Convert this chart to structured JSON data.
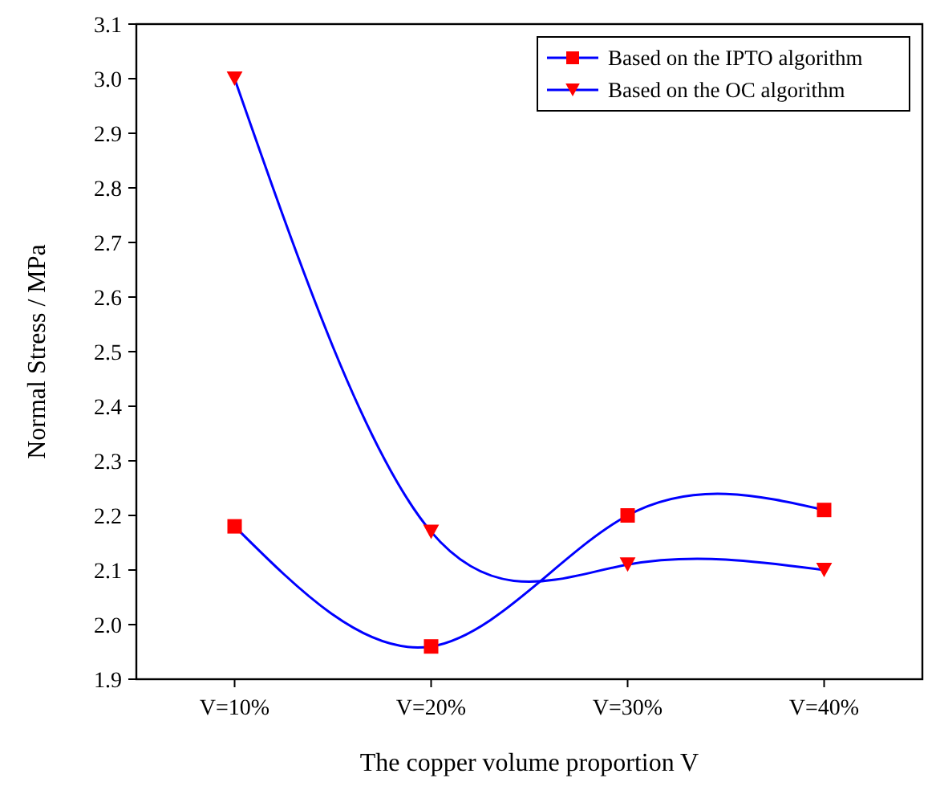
{
  "chart_data": {
    "type": "line",
    "xlabel": "The copper volume proportion V",
    "ylabel": "Normal Stress / MPa",
    "categories": [
      "V=10%",
      "V=20%",
      "V=30%",
      "V=40%"
    ],
    "series": [
      {
        "name": "Based on the IPTO algorithm",
        "color": "#0000ff",
        "marker": "square",
        "values": [
          2.18,
          1.96,
          2.2,
          2.21
        ]
      },
      {
        "name": "Based on the OC algorithm",
        "color": "#0000ff",
        "marker": "triangle-down",
        "values": [
          3.0,
          2.17,
          2.11,
          2.1
        ]
      }
    ],
    "ylim": [
      1.9,
      3.1
    ],
    "yticks": [
      1.9,
      {
        "value": 2.0,
        "label": "2.0"
      },
      2.1,
      2.2,
      2.3,
      2.4,
      2.5,
      2.6,
      2.7,
      2.8,
      2.9,
      {
        "value": 3.0,
        "label": "3.0"
      },
      3.1
    ],
    "legend": "top right",
    "grid": false,
    "line_style": "solid"
  }
}
